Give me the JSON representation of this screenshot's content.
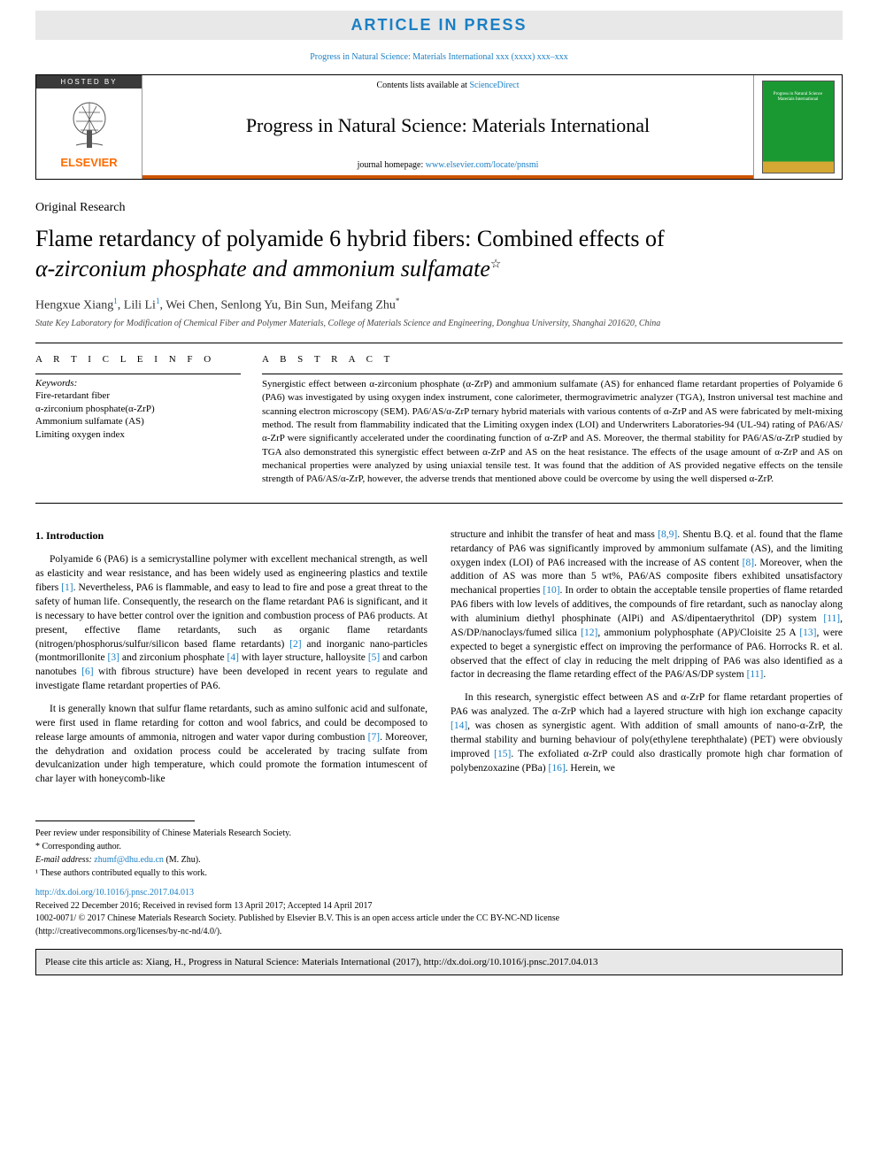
{
  "banner": {
    "article_in_press": "ARTICLE IN PRESS",
    "journal_ref": "Progress in Natural Science: Materials International xxx (xxxx) xxx–xxx"
  },
  "header": {
    "hosted_by": "HOSTED BY",
    "elsevier_text": "ELSEVIER",
    "contents_prefix": "Contents lists available at ",
    "contents_link": "ScienceDirect",
    "journal_name": "Progress in Natural Science: Materials International",
    "homepage_prefix": "journal homepage: ",
    "homepage_link": "www.elsevier.com/locate/pnsmi",
    "cover_title_line1": "Progress in Natural Science",
    "cover_title_line2": "Materials International",
    "colors": {
      "banner_bg": "#e8e8e8",
      "banner_text": "#1a7fc4",
      "link": "#1a7fc4",
      "elsevier_orange": "#ff6b00",
      "bottom_border": "#cc5500",
      "cover_green": "#1a9933",
      "cover_gold": "#d4a833"
    }
  },
  "article": {
    "type": "Original Research",
    "title_line1": "Flame retardancy of polyamide 6 hybrid fibers: Combined effects of",
    "title_line2": "α-zirconium phosphate and ammonium sulfamate",
    "title_star": "☆",
    "authors_html": "Hengxue Xiang|1|, Lili Li|1|, Wei Chen, Senlong Yu, Bin Sun, Meifang Zhu|*|",
    "authors": [
      {
        "name": "Hengxue Xiang",
        "mark": "1"
      },
      {
        "name": "Lili Li",
        "mark": "1"
      },
      {
        "name": "Wei Chen",
        "mark": ""
      },
      {
        "name": "Senlong Yu",
        "mark": ""
      },
      {
        "name": "Bin Sun",
        "mark": ""
      },
      {
        "name": "Meifang Zhu",
        "mark": "*"
      }
    ],
    "affiliation": "State Key Laboratory for Modification of Chemical Fiber and Polymer Materials, College of Materials Science and Engineering, Donghua University, Shanghai 201620, China"
  },
  "info": {
    "header": "A R T I C L E   I N F O",
    "keywords_label": "Keywords:",
    "keywords": [
      "Fire-retardant fiber",
      "α-zirconium phosphate(α-ZrP)",
      "Ammonium sulfamate (AS)",
      "Limiting oxygen index"
    ]
  },
  "abstract": {
    "header": "A B S T R A C T",
    "text": "Synergistic effect between α-zirconium phosphate (α-ZrP) and ammonium sulfamate (AS) for enhanced flame retardant properties of Polyamide 6 (PA6) was investigated by using oxygen index instrument, cone calorimeter, thermogravimetric analyzer (TGA), Instron universal test machine and scanning electron microscopy (SEM). PA6/AS/α-ZrP ternary hybrid materials with various contents of α-ZrP and AS were fabricated by melt-mixing method. The result from flammability indicated that the Limiting oxygen index (LOI) and Underwriters Laboratories-94 (UL-94) rating of PA6/AS/α-ZrP were significantly accelerated under the coordinating function of α-ZrP and AS. Moreover, the thermal stability for PA6/AS/α-ZrP studied by TGA also demonstrated this synergistic effect between α-ZrP and AS on the heat resistance. The effects of the usage amount of α-ZrP and AS on mechanical properties were analyzed by using uniaxial tensile test. It was found that the addition of AS provided negative effects on the tensile strength of PA6/AS/α-ZrP, however, the adverse trends that mentioned above could be overcome by using the well dispersed α-ZrP."
  },
  "sections": {
    "intro_header": "1.  Introduction",
    "col1_p1": "Polyamide 6 (PA6) is a semicrystalline polymer with excellent mechanical strength, as well as elasticity and wear resistance, and has been widely used as engineering plastics and textile fibers [1]. Nevertheless, PA6 is flammable, and easy to lead to fire and pose a great threat to the safety of human life. Consequently, the research on the flame retardant PA6 is significant, and it is necessary to have better control over the ignition and combustion process of PA6 products. At present, effective flame retardants, such as organic flame retardants (nitrogen/phosphorus/sulfur/silicon based flame retardants) [2] and inorganic nano-particles (montmorillonite [3] and zirconium phosphate [4] with layer structure, halloysite [5] and carbon nanotubes [6] with fibrous structure) have been developed in recent years to regulate and investigate flame retardant properties of PA6.",
    "col1_p2": "It is generally known that sulfur flame retardants, such as amino sulfonic acid and sulfonate, were first used in flame retarding for cotton and wool fabrics, and could be decomposed to release large amounts of ammonia, nitrogen and water vapor during combustion [7]. Moreover, the dehydration and oxidation process could be accelerated by tracing sulfate from devulcanization under high temperature, which could promote the formation intumescent of char layer with honeycomb-like",
    "col2_p1": "structure and inhibit the transfer of heat and mass [8,9]. Shentu B.Q. et al. found that the flame retardancy of PA6 was significantly improved by ammonium sulfamate (AS), and the limiting oxygen index (LOI) of PA6 increased with the increase of AS content [8]. Moreover, when the addition of AS was more than 5 wt%, PA6/AS composite fibers exhibited unsatisfactory mechanical properties [10]. In order to obtain the acceptable tensile properties of flame retarded PA6 fibers with low levels of additives, the compounds of fire retardant, such as nanoclay along with aluminium diethyl phosphinate (AlPi) and AS/dipentaerythritol (DP) system [11], AS/DP/nanoclays/fumed silica [12], ammonium polyphosphate (AP)/Cloisite 25 A [13], were expected to beget a synergistic effect on improving the performance of PA6. Horrocks R. et al. observed that the effect of clay in reducing the melt dripping of PA6 was also identified as a factor in decreasing the flame retarding effect of the PA6/AS/DP system [11].",
    "col2_p2": "In this research, synergistic effect between AS and α-ZrP for flame retardant properties of PA6 was analyzed. The α-ZrP which had a layered structure with high ion exchange capacity [14], was chosen as synergistic agent. With addition of small amounts of nano-α-ZrP, the thermal stability and burning behaviour of poly(ethylene terephthalate) (PET) were obviously improved [15]. The exfoliated α-ZrP could also drastically promote high char formation of polybenzoxazine (PBa) [16]. Herein, we",
    "refs_in_text": [
      "[1]",
      "[2]",
      "[3]",
      "[4]",
      "[5]",
      "[6]",
      "[7]",
      "[8,9]",
      "[8]",
      "[10]",
      "[11]",
      "[12]",
      "[13]",
      "[11]",
      "[14]",
      "[15]",
      "[16]"
    ]
  },
  "footnotes": {
    "peer_review": "Peer review under responsibility of Chinese Materials Research Society.",
    "corresponding": "* Corresponding author.",
    "email_label": "E-mail address: ",
    "email": "zhumf@dhu.edu.cn",
    "email_suffix": " (M. Zhu).",
    "equal": "¹ These authors contributed equally to this work."
  },
  "doi": {
    "link": "http://dx.doi.org/10.1016/j.pnsc.2017.04.013",
    "received": "Received 22 December 2016; Received in revised form 13 April 2017; Accepted 14 April 2017",
    "copyright": "1002-0071/ © 2017 Chinese Materials Research Society. Published by Elsevier B.V. This is an open access article under the CC BY-NC-ND license",
    "cc_url": "(http://creativecommons.org/licenses/by-nc-nd/4.0/)."
  },
  "cite_box": "Please cite this article as: Xiang, H., Progress in Natural Science: Materials International (2017), http://dx.doi.org/10.1016/j.pnsc.2017.04.013"
}
